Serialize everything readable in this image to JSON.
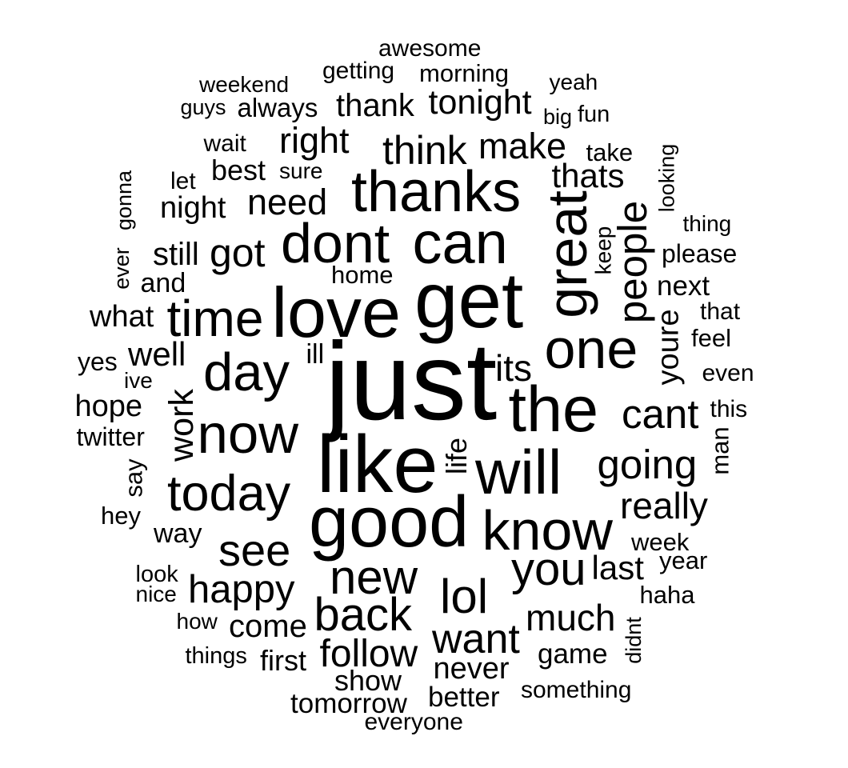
{
  "word_cloud": {
    "text_color": "#000000",
    "background": "#ffffff",
    "words": [
      {
        "text": "awesome"
      },
      {
        "text": "getting"
      },
      {
        "text": "morning"
      },
      {
        "text": "weekend"
      },
      {
        "text": "yeah"
      },
      {
        "text": "guys"
      },
      {
        "text": "always"
      },
      {
        "text": "thank"
      },
      {
        "text": "tonight"
      },
      {
        "text": "big"
      },
      {
        "text": "fun"
      },
      {
        "text": "wait"
      },
      {
        "text": "right"
      },
      {
        "text": "think"
      },
      {
        "text": "make"
      },
      {
        "text": "take"
      },
      {
        "text": "let"
      },
      {
        "text": "best"
      },
      {
        "text": "sure"
      },
      {
        "text": "thanks"
      },
      {
        "text": "thats"
      },
      {
        "text": "looking"
      },
      {
        "text": "gonna"
      },
      {
        "text": "night"
      },
      {
        "text": "need"
      },
      {
        "text": "thing"
      },
      {
        "text": "ever"
      },
      {
        "text": "still"
      },
      {
        "text": "got"
      },
      {
        "text": "dont"
      },
      {
        "text": "can"
      },
      {
        "text": "great"
      },
      {
        "text": "keep"
      },
      {
        "text": "people"
      },
      {
        "text": "please"
      },
      {
        "text": "and"
      },
      {
        "text": "home"
      },
      {
        "text": "next"
      },
      {
        "text": "what"
      },
      {
        "text": "time"
      },
      {
        "text": "love"
      },
      {
        "text": "get"
      },
      {
        "text": "that"
      },
      {
        "text": "youre"
      },
      {
        "text": "feel"
      },
      {
        "text": "yes"
      },
      {
        "text": "well"
      },
      {
        "text": "day"
      },
      {
        "text": "ill"
      },
      {
        "text": "just"
      },
      {
        "text": "its"
      },
      {
        "text": "one"
      },
      {
        "text": "ive"
      },
      {
        "text": "even"
      },
      {
        "text": "hope"
      },
      {
        "text": "work"
      },
      {
        "text": "the"
      },
      {
        "text": "cant"
      },
      {
        "text": "this"
      },
      {
        "text": "twitter"
      },
      {
        "text": "now"
      },
      {
        "text": "man"
      },
      {
        "text": "life"
      },
      {
        "text": "like"
      },
      {
        "text": "will"
      },
      {
        "text": "say"
      },
      {
        "text": "going"
      },
      {
        "text": "today"
      },
      {
        "text": "really"
      },
      {
        "text": "hey"
      },
      {
        "text": "good"
      },
      {
        "text": "way"
      },
      {
        "text": "know"
      },
      {
        "text": "week"
      },
      {
        "text": "see"
      },
      {
        "text": "year"
      },
      {
        "text": "you"
      },
      {
        "text": "last"
      },
      {
        "text": "look"
      },
      {
        "text": "new"
      },
      {
        "text": "nice"
      },
      {
        "text": "happy"
      },
      {
        "text": "haha"
      },
      {
        "text": "lol"
      },
      {
        "text": "how"
      },
      {
        "text": "back"
      },
      {
        "text": "much"
      },
      {
        "text": "come"
      },
      {
        "text": "didnt"
      },
      {
        "text": "want"
      },
      {
        "text": "things"
      },
      {
        "text": "first"
      },
      {
        "text": "follow"
      },
      {
        "text": "game"
      },
      {
        "text": "never"
      },
      {
        "text": "show"
      },
      {
        "text": "something"
      },
      {
        "text": "better"
      },
      {
        "text": "tomorrow"
      },
      {
        "text": "everyone"
      }
    ]
  }
}
